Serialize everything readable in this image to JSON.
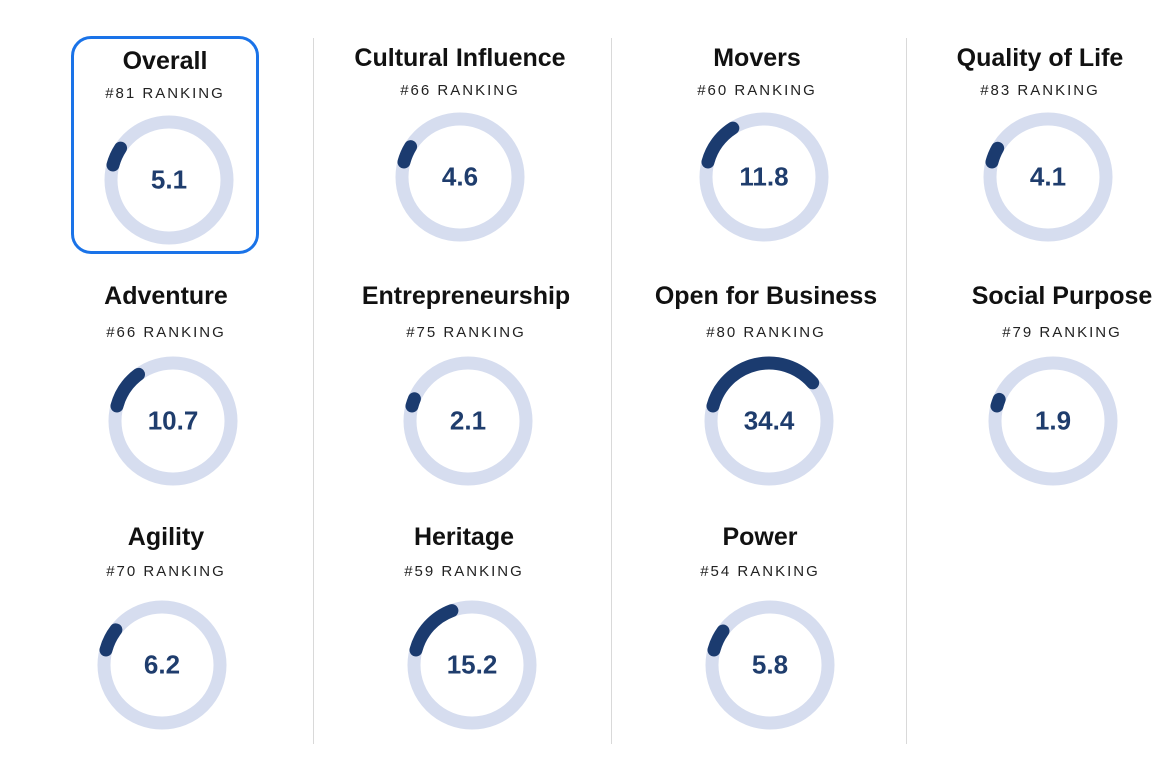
{
  "colors": {
    "track": "#d6ddef",
    "progress": "#1b3b6f",
    "value": "#1f3d6d",
    "selected_border": "#1a73e8"
  },
  "cards": [
    {
      "title": "Overall",
      "rank": "#81 RANKING",
      "value": "5.1",
      "fraction": 0.051
    },
    {
      "title": "Cultural Influence",
      "rank": "#66 RANKING",
      "value": "4.6",
      "fraction": 0.046
    },
    {
      "title": "Movers",
      "rank": "#60 RANKING",
      "value": "11.8",
      "fraction": 0.118
    },
    {
      "title": "Quality of Life",
      "rank": "#83 RANKING",
      "value": "4.1",
      "fraction": 0.041
    },
    {
      "title": "Adventure",
      "rank": "#66 RANKING",
      "value": "10.7",
      "fraction": 0.107
    },
    {
      "title": "Entrepreneurship",
      "rank": "#75 RANKING",
      "value": "2.1",
      "fraction": 0.021
    },
    {
      "title": "Open for Business",
      "rank": "#80 RANKING",
      "value": "34.4",
      "fraction": 0.344
    },
    {
      "title": "Social Purpose",
      "rank": "#79 RANKING",
      "value": "1.9",
      "fraction": 0.019
    },
    {
      "title": "Agility",
      "rank": "#70 RANKING",
      "value": "6.2",
      "fraction": 0.062
    },
    {
      "title": "Heritage",
      "rank": "#59 RANKING",
      "value": "15.2",
      "fraction": 0.152
    },
    {
      "title": "Power",
      "rank": "#54 RANKING",
      "value": "5.8",
      "fraction": 0.058
    }
  ],
  "selected_card": "Overall"
}
